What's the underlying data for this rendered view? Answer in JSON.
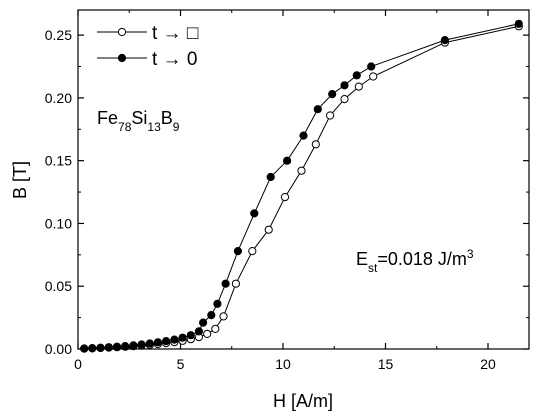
{
  "chart_data": {
    "type": "line",
    "xlabel": "H [A/m]",
    "ylabel": "B [T]",
    "xlim": [
      0,
      22
    ],
    "ylim": [
      0,
      0.27
    ],
    "xticks": [
      0,
      5,
      10,
      15,
      20
    ],
    "yticks": [
      0.0,
      0.05,
      0.1,
      0.15,
      0.2,
      0.25
    ],
    "grid": false,
    "legend_position": "top-left",
    "series": [
      {
        "name": "t → □",
        "marker": "open-circle",
        "points": [
          [
            0.3,
            0.0003
          ],
          [
            0.7,
            0.0005
          ],
          [
            1.1,
            0.0008
          ],
          [
            1.5,
            0.0011
          ],
          [
            1.9,
            0.0014
          ],
          [
            2.3,
            0.0018
          ],
          [
            2.7,
            0.0022
          ],
          [
            3.1,
            0.0027
          ],
          [
            3.5,
            0.0033
          ],
          [
            3.9,
            0.004
          ],
          [
            4.3,
            0.0047
          ],
          [
            4.7,
            0.0055
          ],
          [
            5.1,
            0.0065
          ],
          [
            5.5,
            0.0078
          ],
          [
            5.9,
            0.0095
          ],
          [
            6.3,
            0.012
          ],
          [
            6.7,
            0.016
          ],
          [
            7.1,
            0.026
          ],
          [
            7.7,
            0.052
          ],
          [
            8.5,
            0.078
          ],
          [
            9.3,
            0.095
          ],
          [
            10.1,
            0.121
          ],
          [
            10.9,
            0.142
          ],
          [
            11.6,
            0.163
          ],
          [
            12.3,
            0.186
          ],
          [
            13.0,
            0.199
          ],
          [
            13.7,
            0.209
          ],
          [
            14.4,
            0.217
          ],
          [
            17.9,
            0.244
          ],
          [
            21.5,
            0.257
          ]
        ]
      },
      {
        "name": "t → 0",
        "marker": "filled-circle",
        "points": [
          [
            0.3,
            0.0004
          ],
          [
            0.7,
            0.0007
          ],
          [
            1.1,
            0.001
          ],
          [
            1.5,
            0.0014
          ],
          [
            1.9,
            0.0018
          ],
          [
            2.3,
            0.0023
          ],
          [
            2.7,
            0.0029
          ],
          [
            3.1,
            0.0036
          ],
          [
            3.5,
            0.0044
          ],
          [
            3.9,
            0.0053
          ],
          [
            4.3,
            0.0063
          ],
          [
            4.7,
            0.0075
          ],
          [
            5.1,
            0.009
          ],
          [
            5.5,
            0.011
          ],
          [
            5.9,
            0.014
          ],
          [
            6.1,
            0.021
          ],
          [
            6.5,
            0.027
          ],
          [
            6.8,
            0.036
          ],
          [
            7.2,
            0.052
          ],
          [
            7.8,
            0.078
          ],
          [
            8.6,
            0.108
          ],
          [
            9.4,
            0.137
          ],
          [
            10.2,
            0.15
          ],
          [
            11.0,
            0.17
          ],
          [
            11.7,
            0.191
          ],
          [
            12.4,
            0.203
          ],
          [
            13.0,
            0.21
          ],
          [
            13.6,
            0.218
          ],
          [
            14.3,
            0.225
          ],
          [
            17.9,
            0.246
          ],
          [
            21.5,
            0.259
          ]
        ]
      }
    ],
    "annotations": [
      {
        "id": "composition",
        "parts": [
          {
            "t": "Fe",
            "sub": false
          },
          {
            "t": "78",
            "sub": true
          },
          {
            "t": "Si",
            "sub": false
          },
          {
            "t": "13",
            "sub": true
          },
          {
            "t": "B",
            "sub": false
          },
          {
            "t": "9",
            "sub": true
          }
        ]
      },
      {
        "id": "energy",
        "parts": [
          {
            "t": "E",
            "sub": false
          },
          {
            "t": "st",
            "sub": true
          },
          {
            "t": "=0.018 J/m",
            "sub": false
          },
          {
            "t": "3",
            "sup": true
          }
        ]
      }
    ]
  }
}
